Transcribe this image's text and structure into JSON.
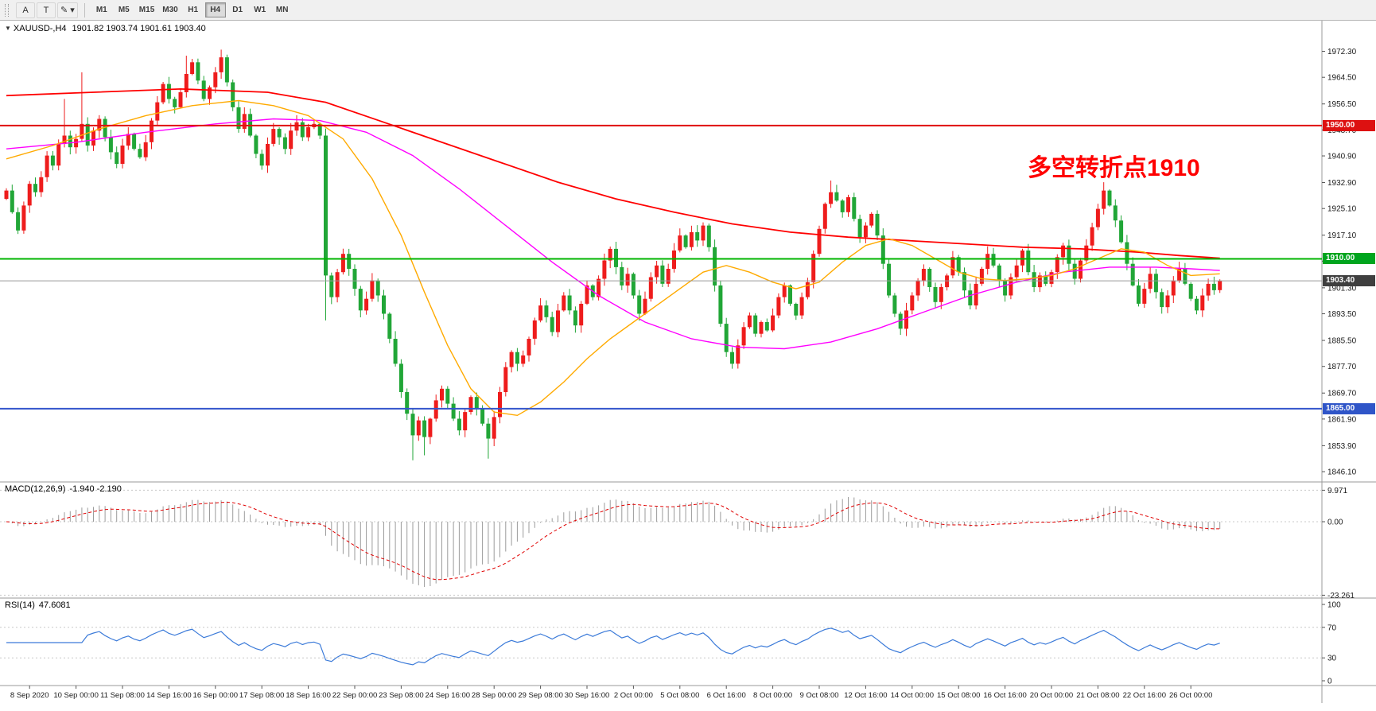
{
  "toolbar": {
    "tools": [
      {
        "id": "text-label-tool",
        "label": "A"
      },
      {
        "id": "text-tool",
        "label": "T"
      },
      {
        "id": "shapes-tool",
        "label": "✎",
        "arrow": "▾"
      }
    ],
    "timeframes": [
      {
        "label": "M1"
      },
      {
        "label": "M5"
      },
      {
        "label": "M15"
      },
      {
        "label": "M30"
      },
      {
        "label": "H1"
      },
      {
        "label": "H4",
        "active": true
      },
      {
        "label": "D1"
      },
      {
        "label": "W1"
      },
      {
        "label": "MN"
      }
    ]
  },
  "symbol_line": {
    "dropdown_icon": "▼",
    "symbol": "XAUUSD-,H4",
    "ohlc": "1901.82 1903.74 1901.61 1903.40"
  },
  "annotation": {
    "text": "多空转折点1910",
    "color": "#ff0000"
  },
  "price_axis": {
    "badges": [
      {
        "label": "1950.00",
        "value": 1950.0,
        "color": "#dd1111",
        "type": "line"
      },
      {
        "label": "1910.00",
        "value": 1910.0,
        "color": "#00a51e",
        "type": "line"
      },
      {
        "label": "1903.40",
        "value": 1903.4,
        "color": "#3f3f3f",
        "type": "current"
      },
      {
        "label": "1865.00",
        "value": 1865.0,
        "color": "#2f55c8",
        "type": "line"
      }
    ]
  },
  "chart_data": {
    "type": "candlestick",
    "symbol": "XAUUSD-",
    "timeframe": "H4",
    "ohlc_display": {
      "open": "1901.82",
      "high": "1903.74",
      "low": "1901.61",
      "close": "1903.40"
    },
    "up_color": "#ee1c1c",
    "down_color": "#21a637",
    "first_open": 1928.0,
    "closes": [
      1930.5,
      1924.0,
      1918.5,
      1926.0,
      1932.5,
      1930.0,
      1934.5,
      1941.0,
      1938.0,
      1944.5,
      1947.0,
      1943.5,
      1946.0,
      1950.5,
      1944.0,
      1948.5,
      1952.0,
      1946.5,
      1942.0,
      1938.5,
      1944.0,
      1947.5,
      1943.0,
      1940.5,
      1945.0,
      1951.5,
      1957.0,
      1962.5,
      1958.0,
      1955.5,
      1960.0,
      1965.5,
      1969.0,
      1963.5,
      1958.0,
      1961.5,
      1966.0,
      1970.5,
      1963.0,
      1955.5,
      1949.0,
      1953.5,
      1947.0,
      1941.5,
      1938.0,
      1944.5,
      1949.0,
      1946.5,
      1943.0,
      1948.5,
      1951.0,
      1946.5,
      1949.5,
      1950.5,
      1947.0,
      1905.0,
      1898.5,
      1906.0,
      1911.5,
      1907.0,
      1901.0,
      1894.5,
      1898.0,
      1903.5,
      1899.0,
      1893.5,
      1886.0,
      1878.5,
      1870.0,
      1863.5,
      1857.0,
      1861.5,
      1856.5,
      1862.0,
      1867.5,
      1871.0,
      1866.5,
      1862.0,
      1858.5,
      1864.0,
      1868.5,
      1865.0,
      1860.5,
      1856.0,
      1862.5,
      1870.0,
      1877.5,
      1882.0,
      1878.5,
      1881.0,
      1886.0,
      1891.5,
      1896.0,
      1892.5,
      1888.0,
      1894.5,
      1899.0,
      1894.5,
      1890.0,
      1896.5,
      1902.0,
      1898.5,
      1904.0,
      1909.5,
      1913.0,
      1907.5,
      1902.0,
      1905.5,
      1899.0,
      1893.5,
      1898.0,
      1904.5,
      1908.0,
      1902.5,
      1907.0,
      1912.5,
      1917.0,
      1913.5,
      1918.0,
      1915.5,
      1920.0,
      1913.5,
      1902.0,
      1890.5,
      1882.0,
      1878.5,
      1884.0,
      1889.5,
      1893.0,
      1887.5,
      1891.0,
      1888.5,
      1893.0,
      1898.5,
      1902.0,
      1896.5,
      1893.0,
      1898.5,
      1903.0,
      1911.5,
      1919.0,
      1926.5,
      1930.0,
      1927.5,
      1924.0,
      1928.5,
      1922.0,
      1916.5,
      1920.0,
      1923.5,
      1917.0,
      1908.5,
      1899.0,
      1893.5,
      1889.0,
      1894.5,
      1899.0,
      1903.5,
      1907.0,
      1901.5,
      1897.0,
      1901.5,
      1905.0,
      1910.5,
      1906.0,
      1900.5,
      1896.0,
      1902.5,
      1907.0,
      1911.5,
      1908.0,
      1903.5,
      1899.0,
      1904.5,
      1908.0,
      1912.5,
      1906.0,
      1901.5,
      1905.0,
      1902.5,
      1906.0,
      1910.5,
      1914.0,
      1908.5,
      1904.0,
      1909.5,
      1914.0,
      1919.5,
      1925.0,
      1930.5,
      1926.0,
      1921.5,
      1915.0,
      1908.5,
      1902.0,
      1896.5,
      1901.0,
      1905.5,
      1900.0,
      1895.5,
      1899.0,
      1903.5,
      1907.0,
      1902.5,
      1898.0,
      1894.5,
      1899.0,
      1902.5,
      1900.6,
      1903.4
    ],
    "extra_wicks": {
      "10": {
        "high": 1958.0
      },
      "13": {
        "high": 1966.0
      },
      "31": {
        "high": 1971.0
      },
      "37": {
        "high": 1972.8
      },
      "55": {
        "low": 1891.5
      },
      "70": {
        "low": 1849.5
      },
      "72": {
        "low": 1851.0
      },
      "83": {
        "low": 1850.0
      },
      "142": {
        "high": 1933.5
      },
      "189": {
        "high": 1933.0
      }
    },
    "hlines": [
      {
        "value": 1950.0,
        "color": "#e01010",
        "label": "1950.00"
      },
      {
        "value": 1910.0,
        "color": "#00b400",
        "label": "1910.00"
      },
      {
        "value": 1865.0,
        "color": "#3355cc",
        "label": "1865.00"
      }
    ],
    "current_price": 1903.4,
    "ma_lines": [
      {
        "name": "slow-red",
        "color": "#ff0000",
        "width": 1.8,
        "points": [
          [
            0,
            1959
          ],
          [
            15,
            1960
          ],
          [
            30,
            1961
          ],
          [
            45,
            1960
          ],
          [
            55,
            1957
          ],
          [
            65,
            1951
          ],
          [
            75,
            1945
          ],
          [
            85,
            1939
          ],
          [
            95,
            1933
          ],
          [
            105,
            1928
          ],
          [
            115,
            1924
          ],
          [
            125,
            1920.5
          ],
          [
            135,
            1918
          ],
          [
            145,
            1916.5
          ],
          [
            155,
            1915.5
          ],
          [
            165,
            1914.5
          ],
          [
            175,
            1913.5
          ],
          [
            185,
            1913
          ],
          [
            195,
            1912
          ],
          [
            202,
            1911
          ],
          [
            209,
            1910.2
          ]
        ]
      },
      {
        "name": "medium-magenta",
        "color": "#ff00ff",
        "width": 1.4,
        "points": [
          [
            0,
            1943
          ],
          [
            12,
            1945
          ],
          [
            24,
            1948
          ],
          [
            36,
            1950.5
          ],
          [
            46,
            1952
          ],
          [
            54,
            1951.5
          ],
          [
            62,
            1948
          ],
          [
            70,
            1941
          ],
          [
            78,
            1931
          ],
          [
            86,
            1920
          ],
          [
            94,
            1909
          ],
          [
            102,
            1899
          ],
          [
            110,
            1891
          ],
          [
            118,
            1886
          ],
          [
            126,
            1883.5
          ],
          [
            134,
            1883
          ],
          [
            142,
            1885
          ],
          [
            150,
            1889
          ],
          [
            158,
            1894
          ],
          [
            166,
            1899
          ],
          [
            174,
            1903
          ],
          [
            182,
            1906
          ],
          [
            190,
            1907.5
          ],
          [
            198,
            1907.5
          ],
          [
            204,
            1907
          ],
          [
            209,
            1906.5
          ]
        ]
      },
      {
        "name": "fast-orange",
        "color": "#ffaa00",
        "width": 1.4,
        "points": [
          [
            0,
            1940
          ],
          [
            8,
            1944
          ],
          [
            16,
            1949
          ],
          [
            24,
            1953
          ],
          [
            32,
            1956
          ],
          [
            40,
            1957.5
          ],
          [
            46,
            1956
          ],
          [
            52,
            1953
          ],
          [
            58,
            1946
          ],
          [
            63,
            1934
          ],
          [
            68,
            1917
          ],
          [
            72,
            1900
          ],
          [
            76,
            1884
          ],
          [
            80,
            1871
          ],
          [
            84,
            1864
          ],
          [
            88,
            1863
          ],
          [
            92,
            1867
          ],
          [
            96,
            1873
          ],
          [
            100,
            1880
          ],
          [
            104,
            1886
          ],
          [
            108,
            1891
          ],
          [
            112,
            1896
          ],
          [
            116,
            1901
          ],
          [
            120,
            1906
          ],
          [
            124,
            1908
          ],
          [
            128,
            1906
          ],
          [
            132,
            1903
          ],
          [
            136,
            1901
          ],
          [
            140,
            1903
          ],
          [
            144,
            1909
          ],
          [
            148,
            1914
          ],
          [
            152,
            1916
          ],
          [
            156,
            1914
          ],
          [
            160,
            1910
          ],
          [
            164,
            1906
          ],
          [
            168,
            1904
          ],
          [
            172,
            1903.5
          ],
          [
            176,
            1904
          ],
          [
            180,
            1905
          ],
          [
            184,
            1907
          ],
          [
            188,
            1910
          ],
          [
            192,
            1913
          ],
          [
            196,
            1912
          ],
          [
            200,
            1908
          ],
          [
            204,
            1905
          ],
          [
            209,
            1905.5
          ]
        ]
      }
    ],
    "y_ticks": [
      "1972.30",
      "1964.50",
      "1956.50",
      "1948.70",
      "1940.90",
      "1932.90",
      "1925.10",
      "1917.10",
      "1909.30",
      "1901.30",
      "1893.50",
      "1885.50",
      "1877.70",
      "1869.70",
      "1861.90",
      "1853.90",
      "1846.10"
    ],
    "x_labels": [
      "8 Sep 2020",
      "10 Sep 00:00",
      "11 Sep 08:00",
      "14 Sep 16:00",
      "16 Sep 00:00",
      "17 Sep 08:00",
      "18 Sep 16:00",
      "22 Sep 00:00",
      "23 Sep 08:00",
      "24 Sep 16:00",
      "28 Sep 00:00",
      "29 Sep 08:00",
      "30 Sep 16:00",
      "2 Oct 00:00",
      "5 Oct 08:00",
      "6 Oct 16:00",
      "8 Oct 00:00",
      "9 Oct 08:00",
      "12 Oct 16:00",
      "14 Oct 00:00",
      "15 Oct 08:00",
      "16 Oct 16:00",
      "20 Oct 00:00",
      "21 Oct 08:00",
      "22 Oct 16:00",
      "26 Oct 00:00"
    ],
    "macd": {
      "name": "MACD(12,26,9)",
      "values": "-1.940 -2.190",
      "params": [
        12,
        26,
        9
      ],
      "axis": [
        "9.971",
        "0.00",
        "-23.261"
      ],
      "max": 9.971,
      "min": -23.261,
      "hist_color": "#9b9b9b",
      "signal_color": "#e00000"
    },
    "rsi": {
      "name": "RSI(14)",
      "value": "47.6081",
      "period": 14,
      "axis": [
        "100",
        "70",
        "30",
        "0"
      ],
      "levels": [
        70,
        30
      ],
      "color": "#3c7bd9"
    }
  }
}
